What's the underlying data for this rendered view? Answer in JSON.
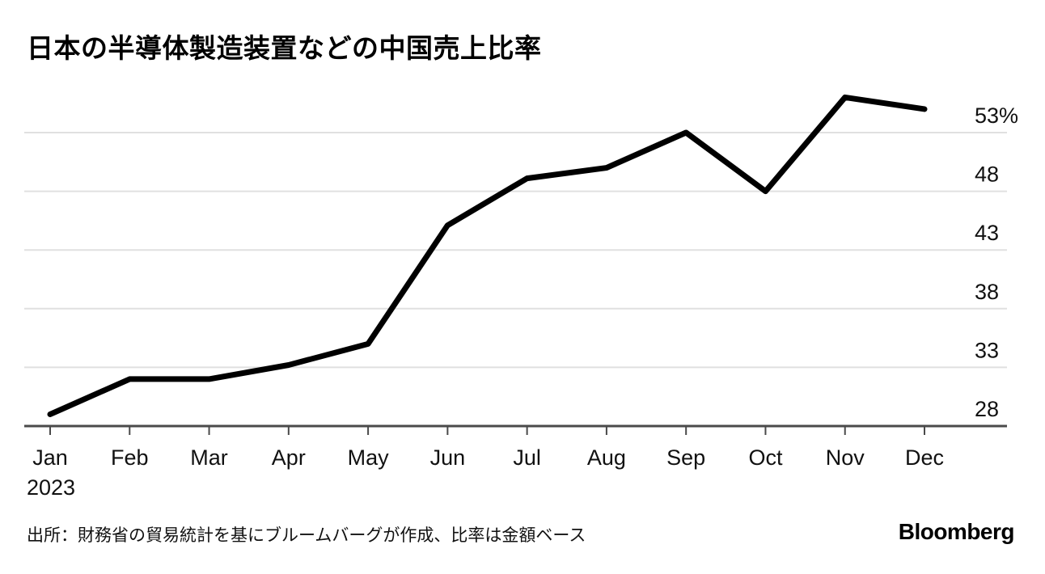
{
  "chart_data": {
    "type": "line",
    "title": "日本の半導体製造装置などの中国売上比率",
    "categories": [
      "Jan",
      "Feb",
      "Mar",
      "Apr",
      "May",
      "Jun",
      "Jul",
      "Aug",
      "Sep",
      "Oct",
      "Nov",
      "Dec"
    ],
    "x_year_label": "2023",
    "values": [
      29,
      32,
      32,
      33.2,
      35,
      45.1,
      49.1,
      50,
      53,
      48,
      56,
      55
    ],
    "ylim": [
      28,
      58
    ],
    "yticks": [
      28,
      33,
      38,
      43,
      48,
      53
    ],
    "ytick_labels": [
      "28",
      "33",
      "38",
      "43",
      "48",
      "53%"
    ],
    "grid": "horizontal",
    "legend": "none",
    "line_color": "#000000",
    "gridline_color": "#e0e0e0",
    "axis_color": "#4a4a4a",
    "label_color": "#111111",
    "source": "出所：財務省の貿易統計を基にブルームバーグが作成、比率は金額ベース",
    "brand": "Bloomberg"
  }
}
